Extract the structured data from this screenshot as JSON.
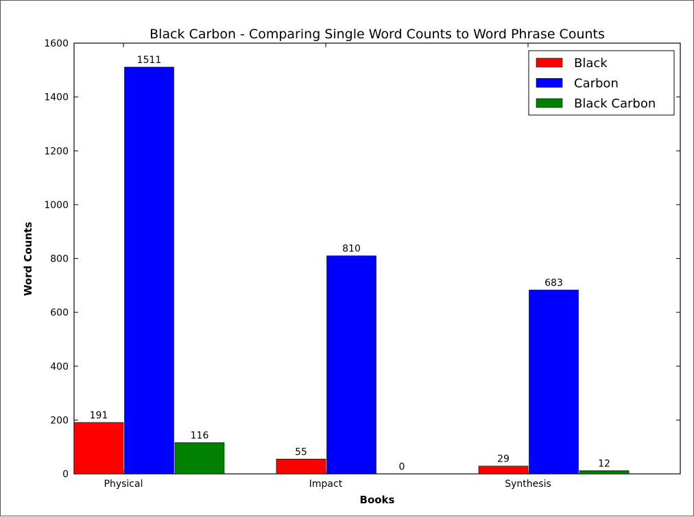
{
  "chart_data": {
    "type": "bar",
    "title": "Black Carbon - Comparing Single Word Counts to Word Phrase Counts",
    "xlabel": "Books",
    "ylabel": "Word Counts",
    "categories": [
      "Physical",
      "Impact",
      "Synthesis"
    ],
    "series": [
      {
        "name": "Black",
        "color": "#ff0000",
        "values": [
          191,
          55,
          29
        ]
      },
      {
        "name": "Carbon",
        "color": "#0000ff",
        "values": [
          1511,
          810,
          683
        ]
      },
      {
        "name": "Black Carbon",
        "color": "#008000",
        "values": [
          116,
          0,
          12
        ]
      }
    ],
    "ylim": [
      0,
      1600
    ],
    "yticks": [
      0,
      200,
      400,
      600,
      800,
      1000,
      1200,
      1400,
      1600
    ],
    "legend_position": "top-right",
    "grid": false
  }
}
